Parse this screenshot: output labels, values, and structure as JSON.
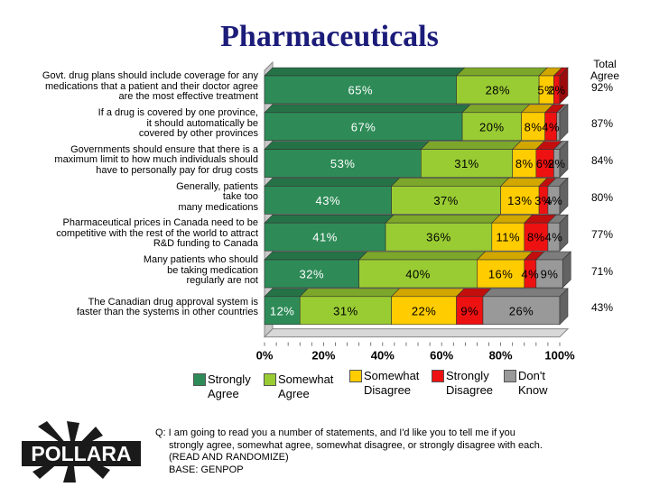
{
  "title": "Pharmaceuticals",
  "total_header": [
    "Total",
    "Agree"
  ],
  "chart_data": {
    "type": "bar",
    "stacked": true,
    "orientation": "horizontal",
    "categories": [
      [
        "Govt. drug plans should include coverage for any",
        "medications that a patient and their doctor agree",
        "are the most effective treatment"
      ],
      [
        "If a drug is covered by one province,",
        "it should automatically be",
        "covered by other provinces"
      ],
      [
        "Governments should ensure that there is a",
        "maximum limit to how much individuals should",
        "have to personally pay for drug costs"
      ],
      [
        "Generally, patients",
        "take too",
        "many medications"
      ],
      [
        "Pharmaceutical prices in Canada need to be",
        "competitive with the rest of the world to attract",
        "R&D funding to Canada"
      ],
      [
        "Many patients who should",
        "be taking medication",
        "regularly are not"
      ],
      [
        "The Canadian drug approval system is",
        "faster than the systems in other countries"
      ]
    ],
    "series": [
      {
        "name": "Strongly Agree",
        "color": "#2e8b57",
        "values": [
          65,
          67,
          53,
          43,
          41,
          32,
          12
        ],
        "labels": [
          "65%",
          "67%",
          "53%",
          "43%",
          "41%",
          "32%",
          "12%"
        ]
      },
      {
        "name": "Somewhat Agree",
        "color": "#99cc33",
        "values": [
          28,
          20,
          31,
          37,
          36,
          40,
          31
        ],
        "labels": [
          "28%",
          "20%",
          "31%",
          "37%",
          "36%",
          "40%",
          "31%"
        ]
      },
      {
        "name": "Somewhat Disagree",
        "color": "#ffcc00",
        "values": [
          5,
          8,
          8,
          13,
          11,
          16,
          22
        ],
        "labels": [
          "5%",
          "8%",
          "8%",
          "13%",
          "11%",
          "16%",
          "22%"
        ]
      },
      {
        "name": "Strongly Disagree",
        "color": "#ee1111",
        "values": [
          2,
          4,
          6,
          3,
          8,
          4,
          9
        ],
        "labels": [
          "2%",
          "4%",
          "6%",
          "3%",
          "8%",
          "4%",
          "9%"
        ]
      },
      {
        "name": "Don't Know",
        "color": "#999999",
        "values": [
          0,
          1,
          2,
          4,
          4,
          9,
          26
        ],
        "labels": [
          "",
          "",
          "2%",
          "4%",
          "4%",
          "9%",
          "26%"
        ]
      }
    ],
    "total_agree": [
      "92%",
      "87%",
      "84%",
      "80%",
      "77%",
      "71%",
      "43%"
    ],
    "x_ticks": [
      "0%",
      "20%",
      "40%",
      "60%",
      "80%",
      "100%"
    ],
    "xlim": [
      0,
      100
    ]
  },
  "legend": [
    {
      "lines": [
        "Strongly",
        "Agree"
      ],
      "color": "#2e8b57"
    },
    {
      "lines": [
        "Somewhat",
        "Agree"
      ],
      "color": "#99cc33"
    },
    {
      "lines": [
        "Somewhat",
        "Disagree"
      ],
      "color": "#ffcc00"
    },
    {
      "lines": [
        "Strongly",
        "Disagree"
      ],
      "color": "#ee1111"
    },
    {
      "lines": [
        "Don't",
        "Know"
      ],
      "color": "#999999"
    }
  ],
  "footnote": [
    "Q: I am going to read you a number of statements, and I'd like you to tell me if you",
    "strongly agree, somewhat agree, somewhat disagree, or strongly disagree with each.",
    "(READ AND RANDOMIZE)",
    "BASE: GENPOP"
  ],
  "logo_text": "POLLARA"
}
